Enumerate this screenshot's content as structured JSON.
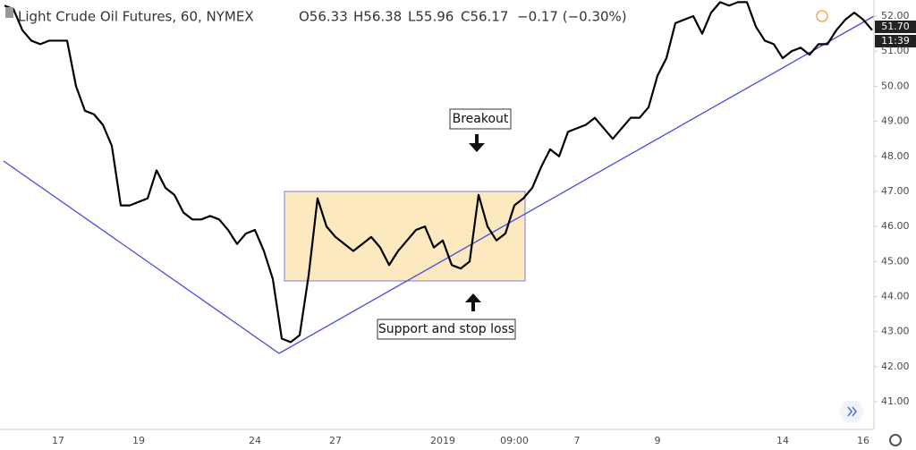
{
  "chart_data": {
    "type": "line",
    "title": "Light Crude Oil Futures, 60, NYMEX",
    "ohlc": {
      "open": "O56.33",
      "high": "H56.38",
      "low": "L55.96",
      "close": "C56.17",
      "change": "−0.17 (−0.30%)"
    },
    "price_tag": "51.70",
    "time_tag": "11:39",
    "annotations": [
      "Breakout",
      "Support and stop loss"
    ],
    "categories": [
      null,
      null,
      null,
      null,
      null,
      null,
      "17",
      null,
      null,
      null,
      null,
      null,
      null,
      null,
      null,
      "19",
      null,
      null,
      null,
      null,
      null,
      null,
      null,
      null,
      null,
      null,
      null,
      null,
      "24",
      null,
      null,
      null,
      null,
      null,
      null,
      null,
      null,
      "27",
      null,
      null,
      null,
      null,
      null,
      null,
      null,
      null,
      null,
      null,
      null,
      "2019",
      null,
      null,
      null,
      null,
      null,
      null,
      null,
      "09:00",
      null,
      null,
      null,
      null,
      null,
      null,
      "7",
      null,
      null,
      null,
      null,
      null,
      null,
      null,
      null,
      "9",
      null,
      null,
      null,
      null,
      null,
      null,
      null,
      null,
      null,
      null,
      null,
      null,
      null,
      "14",
      null,
      null,
      null,
      null,
      null,
      null,
      null,
      null,
      "16",
      null
    ],
    "series": [
      {
        "name": "Light Crude Oil Futures",
        "color": "#000000",
        "values": [
          52.3,
          52.2,
          51.6,
          51.3,
          51.2,
          51.3,
          51.3,
          51.3,
          50.0,
          49.3,
          49.2,
          48.9,
          48.3,
          46.6,
          46.6,
          46.7,
          46.8,
          47.6,
          47.1,
          46.9,
          46.4,
          46.2,
          46.2,
          46.3,
          46.2,
          45.9,
          45.5,
          45.8,
          45.9,
          45.3,
          44.5,
          42.8,
          42.7,
          42.9,
          44.6,
          46.8,
          46.0,
          45.7,
          45.5,
          45.3,
          45.5,
          45.7,
          45.4,
          44.9,
          45.3,
          45.6,
          45.9,
          46.0,
          45.4,
          45.6,
          44.9,
          44.8,
          45.0,
          46.9,
          46.0,
          45.6,
          45.8,
          46.6,
          46.8,
          47.1,
          47.7,
          48.2,
          48.0,
          48.7,
          48.8,
          48.9,
          49.1,
          48.8,
          48.5,
          48.8,
          49.1,
          49.1,
          49.4,
          50.3,
          50.8,
          51.8,
          51.9,
          52.0,
          51.5,
          52.1,
          52.4,
          52.3,
          52.4,
          52.4,
          51.7,
          51.3,
          51.2,
          50.8,
          51.0,
          51.1,
          50.9,
          51.2,
          51.2,
          51.6,
          51.9,
          52.1,
          51.9,
          51.6
        ]
      }
    ],
    "ylim": [
      40.21,
      52.46
    ],
    "yticks": [
      {
        "value": 41,
        "label": "41.00"
      },
      {
        "value": 42,
        "label": "42.00"
      },
      {
        "value": 43,
        "label": "43.00"
      },
      {
        "value": 44,
        "label": "44.00"
      },
      {
        "value": 45,
        "label": "45.00"
      },
      {
        "value": 46,
        "label": "46.00"
      },
      {
        "value": 47,
        "label": "47.00"
      },
      {
        "value": 48,
        "label": "48.00"
      },
      {
        "value": 49,
        "label": "49.00"
      },
      {
        "value": 50,
        "label": "50.00"
      },
      {
        "value": 51,
        "label": "51.00"
      },
      {
        "value": 52,
        "label": "52.00"
      }
    ]
  }
}
